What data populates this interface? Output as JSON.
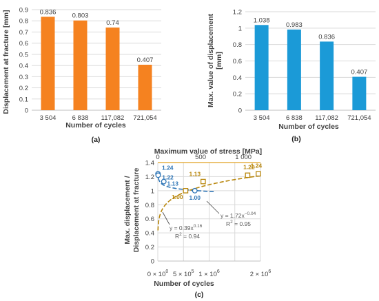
{
  "chart_data": [
    {
      "panel": "(a)",
      "type": "bar",
      "categories": [
        "3 504",
        "6 838",
        "117,082",
        "721,054"
      ],
      "values": [
        0.836,
        0.803,
        0.74,
        0.407
      ],
      "data_labels": [
        "0.836",
        "0.803",
        "0.74",
        "0.407"
      ],
      "xlabel": "Number of cycles",
      "ylabel": "Displacement at fracture [mm]",
      "ylim": [
        0,
        0.9
      ],
      "yticks": [
        0,
        0.1,
        0.2,
        0.3,
        0.4,
        0.5,
        0.6,
        0.7,
        0.8,
        0.9
      ],
      "ytick_labels": [
        "0",
        "0.1",
        "0.2",
        "0.3",
        "0.4",
        "0.5",
        "0.6",
        "0.7",
        "0.8",
        "0.9"
      ],
      "grid": true,
      "color": "#F58220"
    },
    {
      "panel": "(b)",
      "type": "bar",
      "categories": [
        "3 504",
        "6 838",
        "117,082",
        "721,054"
      ],
      "values": [
        1.038,
        0.983,
        0.836,
        0.407
      ],
      "data_labels": [
        "1.038",
        "0.983",
        "0.836",
        "0.407"
      ],
      "xlabel": "Number of cycles",
      "ylabel": "Max. value of displacement [mm]",
      "ylim": [
        0,
        1.2
      ],
      "yticks": [
        0,
        0.2,
        0.4,
        0.6,
        0.8,
        1,
        1.2
      ],
      "ytick_labels": [
        "0",
        "0.2",
        "0.4",
        "0.6",
        "0.8",
        "1",
        "1.2"
      ],
      "grid": true,
      "color": "#1B9AD7"
    },
    {
      "panel": "(c)",
      "type": "scatter",
      "ylabel": "Max. displacement / Displacement at fracture",
      "xlabel_bottom": "Number of cycles",
      "xlabel_top": "Maximum value of stress [MPa]",
      "ylim": [
        0,
        1.4
      ],
      "yticks": [
        0,
        0.2,
        0.4,
        0.6,
        0.8,
        1,
        1.2,
        1.4
      ],
      "ytick_labels": [
        "0",
        "0.2",
        "0.4",
        "0.6",
        "0.8",
        "1",
        "1.2",
        "1.4"
      ],
      "xlim_bottom": [
        0,
        2000000
      ],
      "xticks_bottom": [
        0,
        500000,
        1000000,
        1500000,
        2000000
      ],
      "xtick_labels_bottom": [
        {
          "m": "0",
          "e": "0"
        },
        {
          "m": "5",
          "e": "5"
        },
        {
          "m": "1",
          "e": "6"
        },
        {
          "m": "",
          "e": ""
        },
        {
          "m": "2",
          "e": "6"
        }
      ],
      "xlim_top": [
        0,
        1200
      ],
      "xticks_top": [
        0,
        500,
        1000
      ],
      "xtick_labels_top": [
        "0",
        "500",
        "1 000"
      ],
      "grid": true,
      "series": [
        {
          "axis": "bottom",
          "marker": "circle",
          "color": "#2E75B6",
          "x": [
            3504,
            6838,
            117082,
            721054
          ],
          "y": [
            1.24,
            1.22,
            1.13,
            1.0
          ],
          "labels": [
            "1.24",
            "1.22",
            "1.13",
            "1.00"
          ],
          "trend": {
            "a": 1.72,
            "b": -0.04,
            "equation_prefix": "y = 1.72x",
            "equation_exp": "−0.04",
            "r2_prefix": "R",
            "r2_suffix": " = 0.95"
          }
        },
        {
          "axis": "top",
          "marker": "square",
          "color": "#B8860B",
          "x": [
            325,
            530,
            1050,
            1175
          ],
          "y": [
            1.0,
            1.13,
            1.22,
            1.24
          ],
          "labels": [
            "1.00",
            "1.13",
            "1.22",
            "1.24"
          ],
          "trend": {
            "a": 0.39,
            "b": 0.16,
            "equation_prefix": "y = 0.39x",
            "equation_exp": "0.16",
            "r2_prefix": "R",
            "r2_suffix": " = 0.94"
          }
        }
      ]
    }
  ]
}
